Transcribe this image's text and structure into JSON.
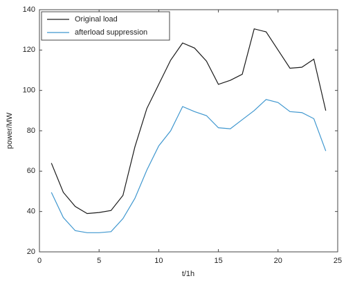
{
  "chart_data": {
    "type": "line",
    "x_label": "t/1h",
    "y_label": "power/MW",
    "x": [
      1,
      2,
      3,
      4,
      5,
      6,
      7,
      8,
      9,
      10,
      11,
      12,
      13,
      14,
      15,
      16,
      17,
      18,
      19,
      20,
      21,
      22,
      23,
      24
    ],
    "series": [
      {
        "name": "Original load",
        "color": "#1a1a1a",
        "values": [
          64,
          49.5,
          42.5,
          39,
          39.5,
          40.5,
          48,
          72,
          91,
          103,
          115,
          123.5,
          121,
          114.5,
          103,
          105,
          108,
          130.5,
          129,
          120,
          111,
          111.5,
          115.5,
          90
        ]
      },
      {
        "name": "afterload suppression",
        "color": "#3f97cf",
        "values": [
          49.5,
          37,
          30.5,
          29.5,
          29.5,
          30,
          36.5,
          46.5,
          60.5,
          72.5,
          80,
          92,
          89.5,
          87.5,
          81.5,
          81,
          85.5,
          90,
          95.5,
          94,
          89.5,
          89,
          86,
          70
        ]
      }
    ],
    "xlim": [
      0,
      25
    ],
    "xticks": [
      0,
      5,
      10,
      15,
      20,
      25
    ],
    "ylim": [
      20,
      140
    ],
    "yticks": [
      20,
      40,
      60,
      80,
      100,
      120,
      140
    ],
    "grid": false,
    "legend": "upper-left"
  }
}
